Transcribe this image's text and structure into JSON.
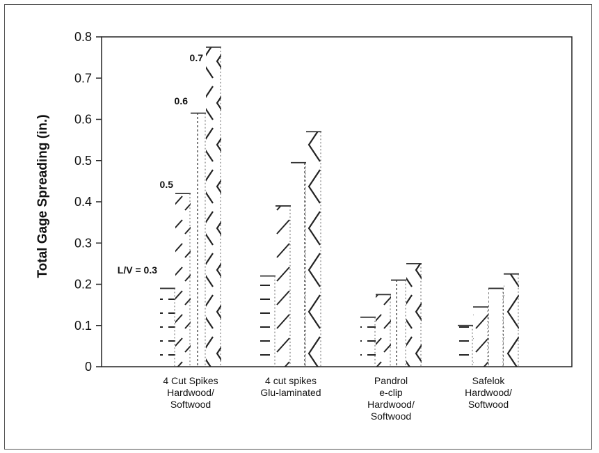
{
  "chart_data": {
    "type": "bar",
    "ylabel": "Total Gage Spreading (in.)",
    "ylim": [
      0,
      0.8
    ],
    "yticks": [
      "0",
      "0.1",
      "0.2",
      "0.3",
      "0.4",
      "0.5",
      "0.6",
      "0.7",
      "0.8"
    ],
    "categories": [
      [
        "4 Cut Spikes",
        "Hardwood/",
        "Softwood"
      ],
      [
        "4 cut spikes",
        "Glu-laminated"
      ],
      [
        "Pandrol",
        "e-clip",
        "Hardwood/",
        "Softwood"
      ],
      [
        "Safelok",
        "Hardwood/",
        "Softwood"
      ]
    ],
    "series": [
      {
        "name": "L/V = 0.3",
        "values": [
          0.19,
          0.22,
          0.12,
          0.1
        ]
      },
      {
        "name": "0.5",
        "values": [
          0.42,
          0.39,
          0.175,
          0.145
        ]
      },
      {
        "name": "0.6",
        "values": [
          0.615,
          0.495,
          0.21,
          0.19
        ]
      },
      {
        "name": "0.7",
        "values": [
          0.775,
          0.57,
          0.25,
          0.225
        ]
      }
    ],
    "annotations": [
      "L/V = 0.3",
      "0.5",
      "0.6",
      "0.7"
    ],
    "grid": false
  }
}
